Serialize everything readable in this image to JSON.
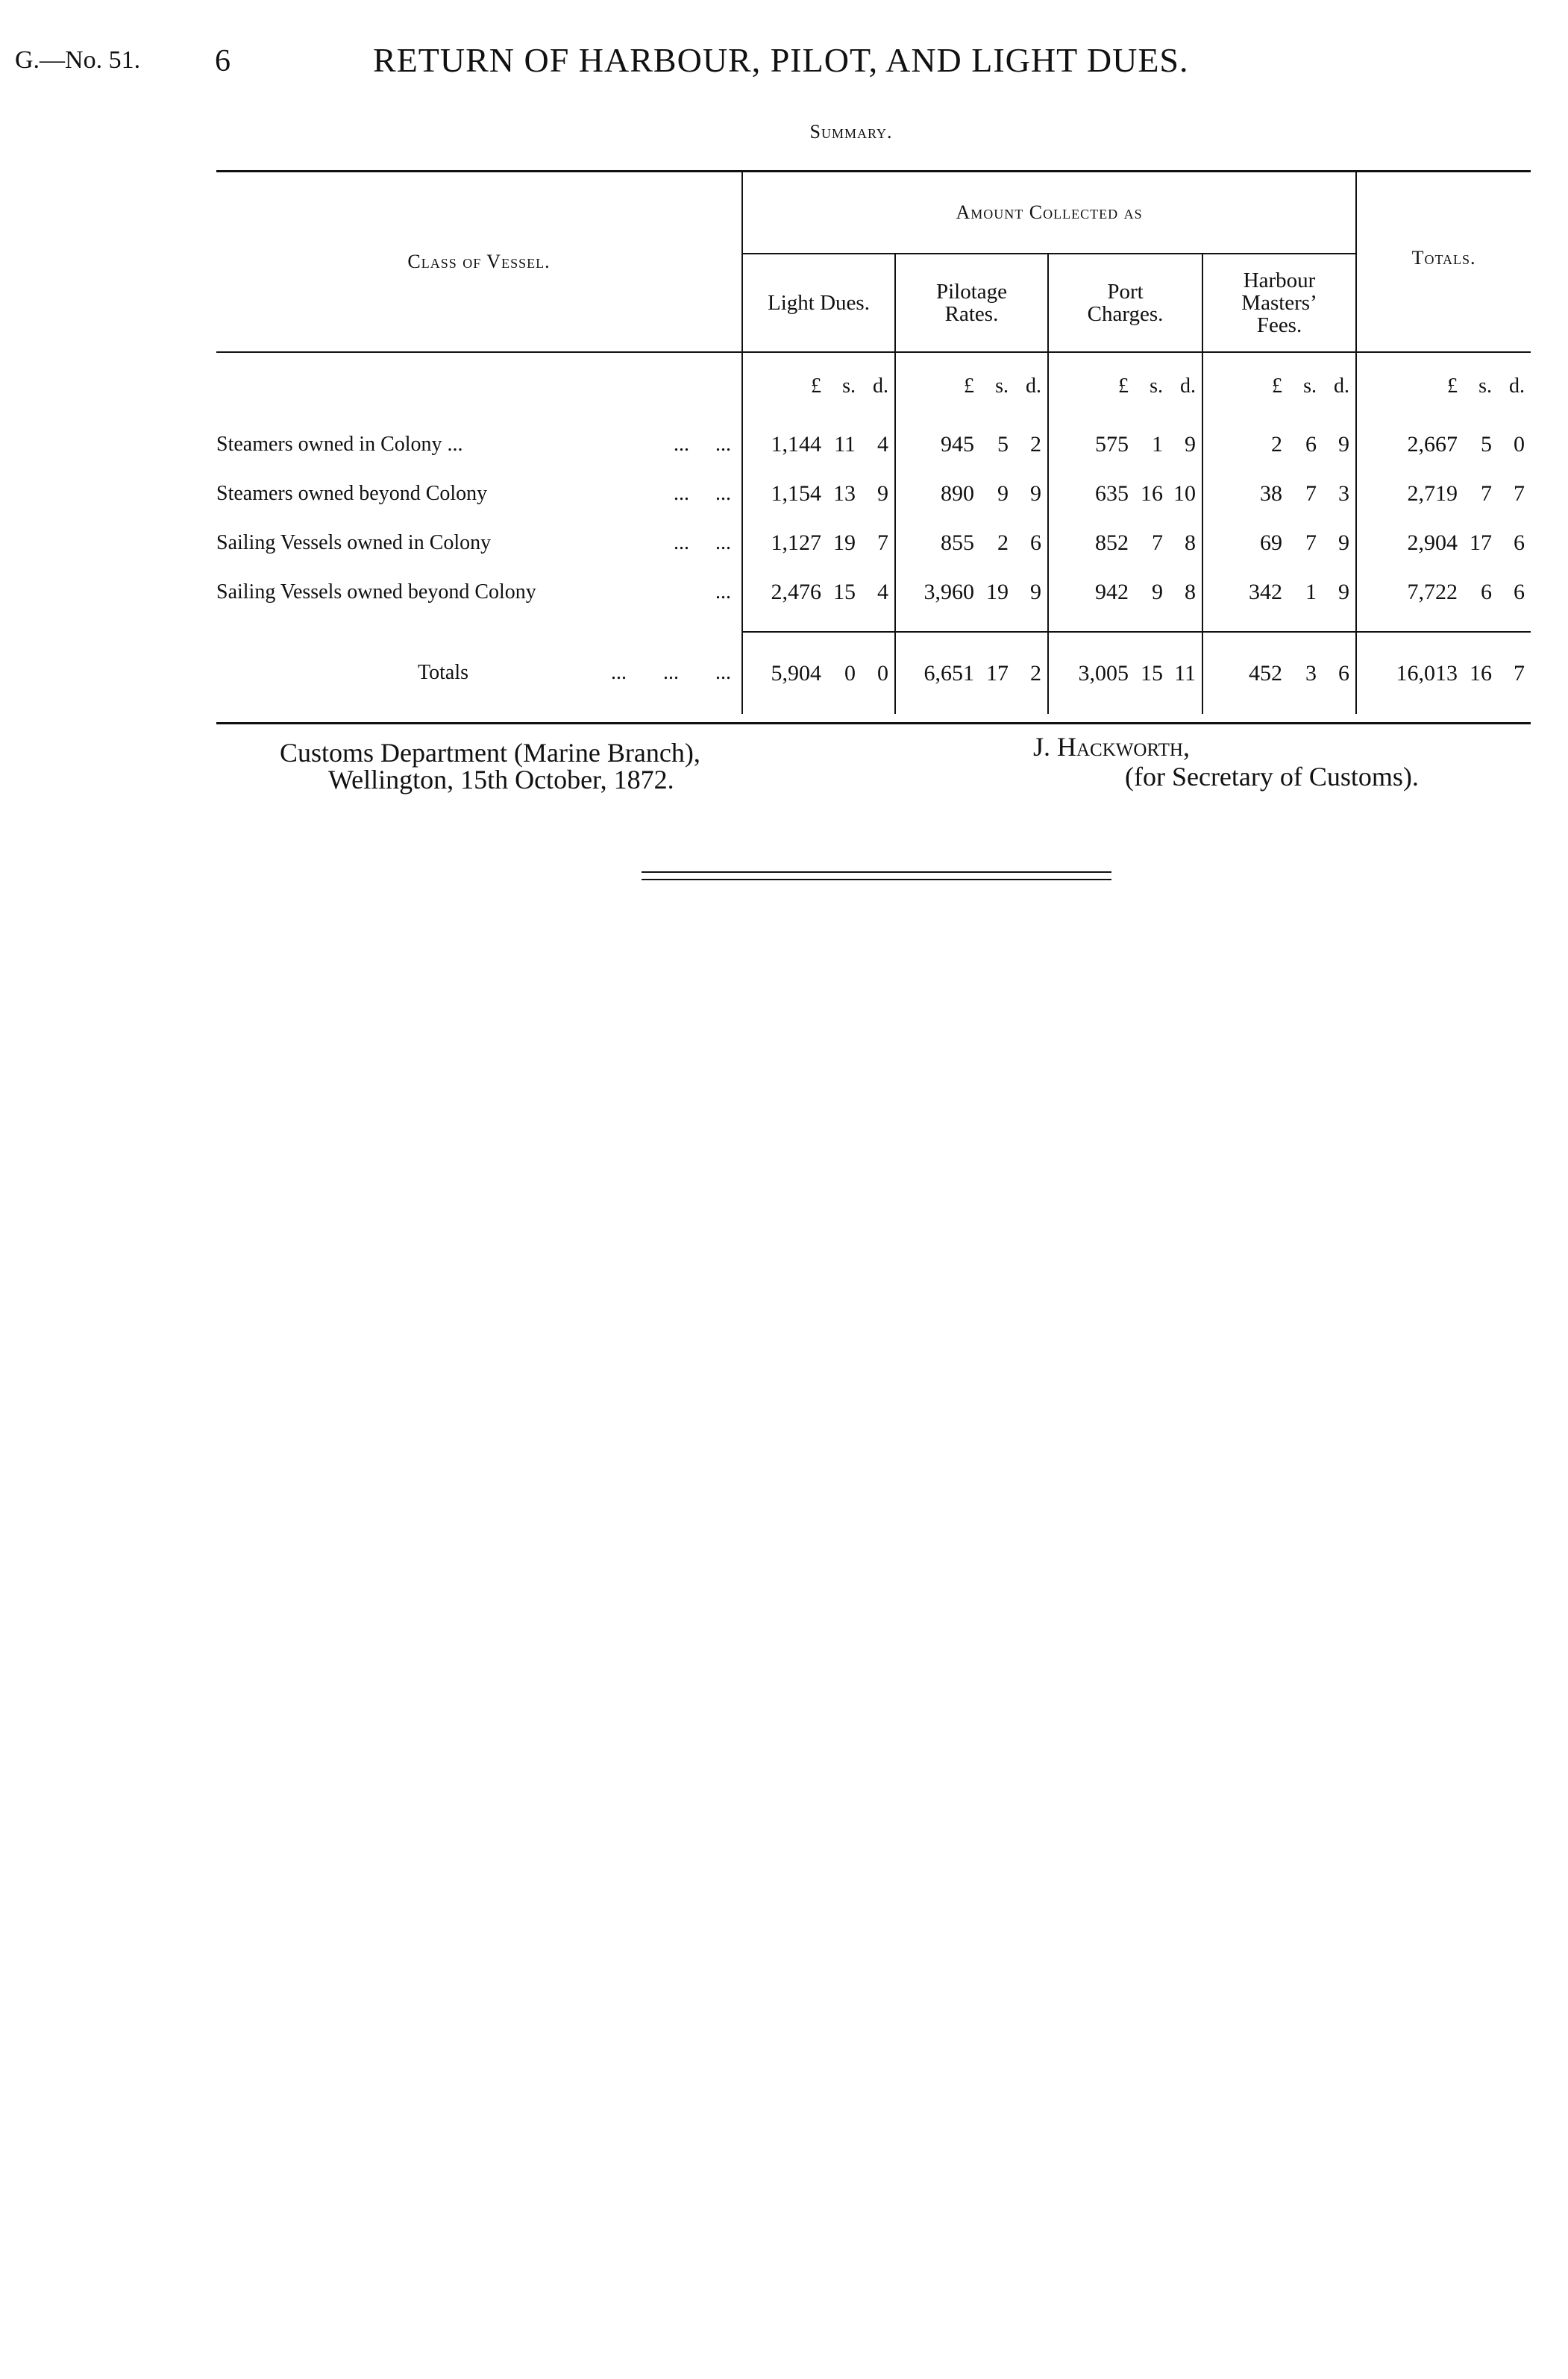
{
  "header": {
    "running_head": "G.—No. 51.",
    "page_number": "6",
    "title": "RETURN OF HARBOUR, PILOT, AND LIGHT DUES."
  },
  "summary_label": "Summary.",
  "table": {
    "class_header": "Class of Vessel.",
    "amount_header": "Amount Collected as",
    "columns": [
      "Light Dues.",
      "Pilotage Rates.",
      "Port Charges.",
      "Harbour Masters’ Fees."
    ],
    "totals_header": "Totals.",
    "units": [
      "£",
      "s.",
      "d."
    ],
    "rows": [
      {
        "label": "Steamers owned in Colony ...",
        "leader": "...     ...",
        "values": [
          [
            "1,144",
            "11",
            "4"
          ],
          [
            "945",
            "5",
            "2"
          ],
          [
            "575",
            "1",
            "9"
          ],
          [
            "2",
            "6",
            "9"
          ],
          [
            "2,667",
            "5",
            "0"
          ]
        ]
      },
      {
        "label": "Steamers owned beyond Colony",
        "leader": "...     ...",
        "values": [
          [
            "1,154",
            "13",
            "9"
          ],
          [
            "890",
            "9",
            "9"
          ],
          [
            "635",
            "16",
            "10"
          ],
          [
            "38",
            "7",
            "3"
          ],
          [
            "2,719",
            "7",
            "7"
          ]
        ]
      },
      {
        "label": "Sailing Vessels owned in Colony",
        "leader": "...     ...",
        "values": [
          [
            "1,127",
            "19",
            "7"
          ],
          [
            "855",
            "2",
            "6"
          ],
          [
            "852",
            "7",
            "8"
          ],
          [
            "69",
            "7",
            "9"
          ],
          [
            "2,904",
            "17",
            "6"
          ]
        ]
      },
      {
        "label": "Sailing Vessels owned beyond Colony",
        "leader": "...",
        "values": [
          [
            "2,476",
            "15",
            "4"
          ],
          [
            "3,960",
            "19",
            "9"
          ],
          [
            "942",
            "9",
            "8"
          ],
          [
            "342",
            "1",
            "9"
          ],
          [
            "7,722",
            "6",
            "6"
          ]
        ]
      }
    ],
    "totals": {
      "label": "Totals",
      "leader": "...       ...       ...",
      "values": [
        [
          "5,904",
          "0",
          "0"
        ],
        [
          "6,651",
          "17",
          "2"
        ],
        [
          "3,005",
          "15",
          "11"
        ],
        [
          "452",
          "3",
          "6"
        ],
        [
          "16,013",
          "16",
          "7"
        ]
      ]
    }
  },
  "footer": {
    "department": "Customs Department (Marine Branch),",
    "place_date": "Wellington, 15th October, 1872.",
    "signatory": "J. Hackworth,",
    "signatory_role": "(for Secretary of Customs)."
  }
}
